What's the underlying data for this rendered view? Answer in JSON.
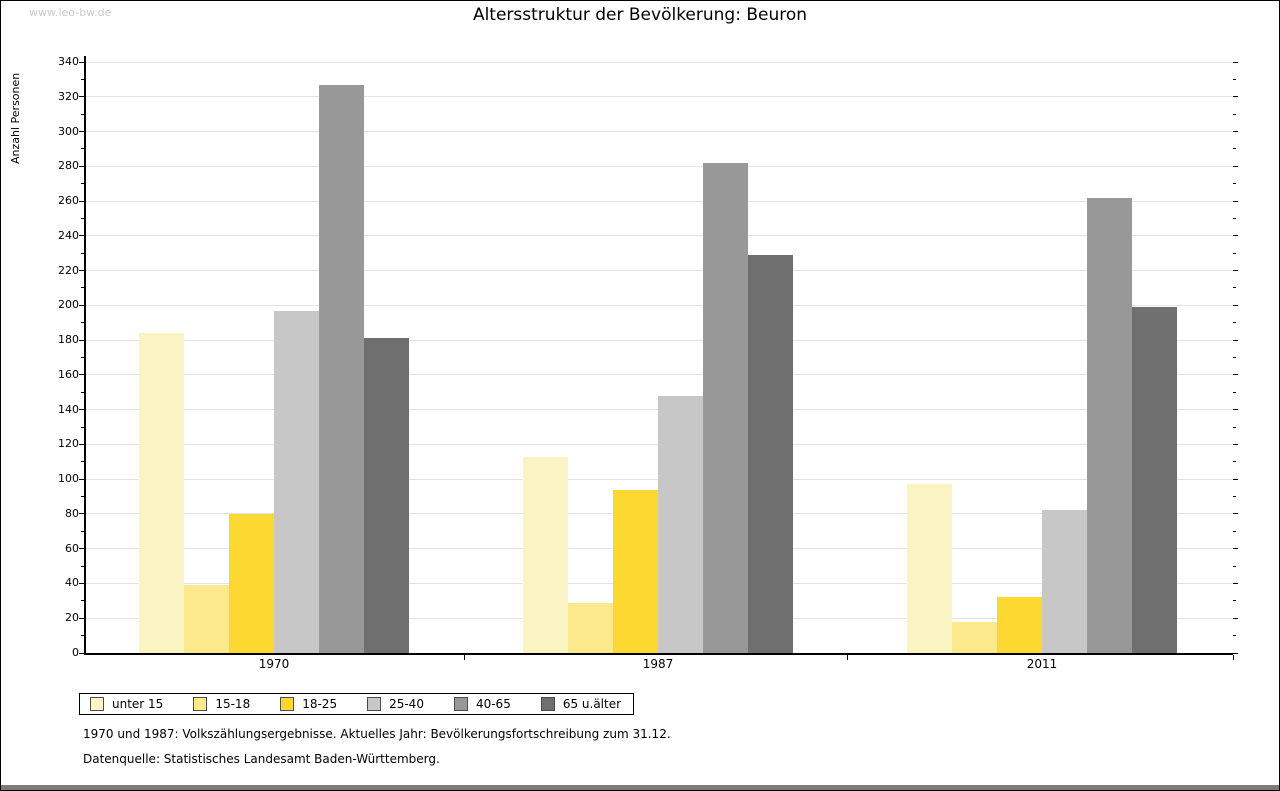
{
  "page": {
    "watermark": "www.leo-bw.de"
  },
  "chart_data": {
    "type": "bar",
    "title": "Altersstruktur der Bevölkerung: Beuron",
    "xlabel": "",
    "ylabel": "Anzahl Personen",
    "ylim": [
      0,
      340
    ],
    "ytick_step": 20,
    "ytick_minor_step": 10,
    "grid": true,
    "legend_position": "bottom-left",
    "categories": [
      "1970",
      "1987",
      "2011"
    ],
    "series": [
      {
        "name": "unter 15",
        "color": "#faf4c4",
        "values": [
          184,
          113,
          97
        ]
      },
      {
        "name": "15-18",
        "color": "#fce98e",
        "values": [
          39,
          29,
          18
        ]
      },
      {
        "name": "18-25",
        "color": "#fcd830",
        "values": [
          80,
          94,
          32
        ]
      },
      {
        "name": "25-40",
        "color": "#c7c7c7",
        "values": [
          197,
          148,
          82
        ]
      },
      {
        "name": "40-65",
        "color": "#989898",
        "values": [
          327,
          282,
          262
        ]
      },
      {
        "name": "65 u.älter",
        "color": "#6f6f6f",
        "values": [
          181,
          229,
          199
        ]
      }
    ]
  },
  "footer": {
    "line1": "1970 und 1987: Volkszählungsergebnisse. Aktuelles Jahr: Bevölkerungsfortschreibung zum 31.12.",
    "line2": "Datenquelle: Statistisches Landesamt Baden-Württemberg."
  }
}
